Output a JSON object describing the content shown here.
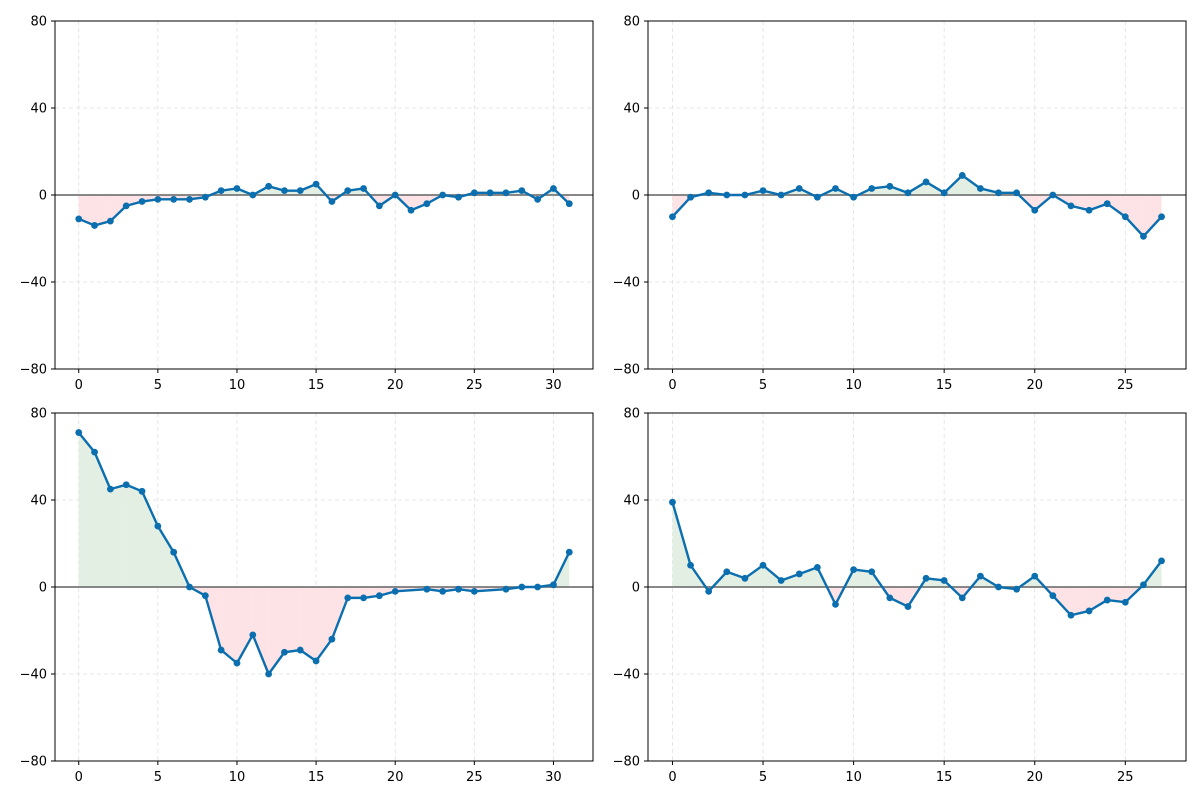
{
  "colors": {
    "line": "#0b6faf",
    "positive_fill": "#e3efe3",
    "negative_fill": "#fde3e5",
    "zero_line": "#777777",
    "grid": "#e0e0e0",
    "axis": "#000000"
  },
  "chart_data": [
    {
      "type": "line",
      "fill_between_zero": true,
      "grid": true,
      "ylim": [
        -80,
        80
      ],
      "xlim": [
        -1.5,
        32.5
      ],
      "yticks": [
        -80,
        -40,
        0,
        40,
        80
      ],
      "ytick_labels": [
        "−80",
        "−40",
        "0",
        "40",
        "80"
      ],
      "xticks": [
        0,
        5,
        10,
        15,
        20,
        25,
        30
      ],
      "xtick_labels": [
        "0",
        "5",
        "10",
        "15",
        "20",
        "25",
        "30"
      ],
      "series": [
        {
          "x": [
            0,
            1,
            2,
            3,
            4,
            5,
            6,
            7,
            8,
            9,
            10,
            11,
            12,
            13,
            14,
            15,
            16,
            17,
            18,
            19,
            20,
            21,
            22,
            23,
            24,
            25,
            26,
            27,
            28,
            29,
            30,
            31
          ],
          "y": [
            -11,
            -14,
            -12,
            -5,
            -3,
            -2,
            -2,
            -2,
            -1,
            2,
            3,
            0,
            4,
            2,
            2,
            5,
            -3,
            2,
            3,
            -5,
            0,
            -7,
            -4,
            0,
            -1,
            1,
            1,
            1,
            2,
            -2,
            3,
            -4
          ]
        }
      ]
    },
    {
      "type": "line",
      "fill_between_zero": true,
      "grid": true,
      "ylim": [
        -80,
        80
      ],
      "xlim": [
        -1.35,
        28.35
      ],
      "yticks": [
        -80,
        -40,
        0,
        40,
        80
      ],
      "ytick_labels": [
        "−80",
        "−40",
        "0",
        "40",
        "80"
      ],
      "xticks": [
        0,
        5,
        10,
        15,
        20,
        25
      ],
      "xtick_labels": [
        "0",
        "5",
        "10",
        "15",
        "20",
        "25"
      ],
      "series": [
        {
          "x": [
            0,
            1,
            2,
            3,
            4,
            5,
            6,
            7,
            8,
            9,
            10,
            11,
            12,
            13,
            14,
            15,
            16,
            17,
            18,
            19,
            20,
            21,
            22,
            23,
            24,
            25,
            26,
            27
          ],
          "y": [
            -10,
            -1,
            1,
            0,
            0,
            2,
            0,
            3,
            -1,
            3,
            -1,
            3,
            4,
            1,
            6,
            1,
            9,
            3,
            1,
            1,
            -7,
            0,
            -5,
            -7,
            -4,
            -10,
            -19,
            -10
          ]
        }
      ]
    },
    {
      "type": "line",
      "fill_between_zero": true,
      "grid": true,
      "ylim": [
        -80,
        80
      ],
      "xlim": [
        -1.5,
        32.5
      ],
      "yticks": [
        -80,
        -40,
        0,
        40,
        80
      ],
      "ytick_labels": [
        "−80",
        "−40",
        "0",
        "40",
        "80"
      ],
      "xticks": [
        0,
        5,
        10,
        15,
        20,
        25,
        30
      ],
      "xtick_labels": [
        "0",
        "5",
        "10",
        "15",
        "20",
        "25",
        "30"
      ],
      "series": [
        {
          "x": [
            0,
            1,
            2,
            3,
            4,
            5,
            6,
            7,
            8,
            9,
            10,
            11,
            12,
            13,
            14,
            15,
            16,
            17,
            18,
            19,
            20,
            22,
            23,
            24,
            25,
            27,
            28,
            29,
            30,
            31
          ],
          "y": [
            71,
            62,
            45,
            47,
            44,
            28,
            16,
            0,
            -4,
            -29,
            -35,
            -22,
            -40,
            -30,
            -29,
            -34,
            -24,
            -5,
            -5,
            -4,
            -2,
            -1,
            -2,
            -1,
            -2,
            -1,
            0,
            0,
            1,
            16
          ]
        }
      ]
    },
    {
      "type": "line",
      "fill_between_zero": true,
      "grid": true,
      "ylim": [
        -80,
        80
      ],
      "xlim": [
        -1.35,
        28.35
      ],
      "yticks": [
        -80,
        -40,
        0,
        40,
        80
      ],
      "ytick_labels": [
        "−80",
        "−40",
        "0",
        "40",
        "80"
      ],
      "xticks": [
        0,
        5,
        10,
        15,
        20,
        25
      ],
      "xtick_labels": [
        "0",
        "5",
        "10",
        "15",
        "20",
        "25"
      ],
      "series": [
        {
          "x": [
            0,
            1,
            2,
            3,
            4,
            5,
            6,
            7,
            8,
            9,
            10,
            11,
            12,
            13,
            14,
            15,
            16,
            17,
            18,
            19,
            20,
            21,
            22,
            23,
            24,
            25,
            26,
            27
          ],
          "y": [
            39,
            10,
            -2,
            7,
            4,
            10,
            3,
            6,
            9,
            -8,
            8,
            7,
            -5,
            -9,
            4,
            3,
            -5,
            5,
            0,
            -1,
            5,
            -4,
            -13,
            -11,
            -6,
            -7,
            1,
            12
          ]
        }
      ]
    }
  ]
}
